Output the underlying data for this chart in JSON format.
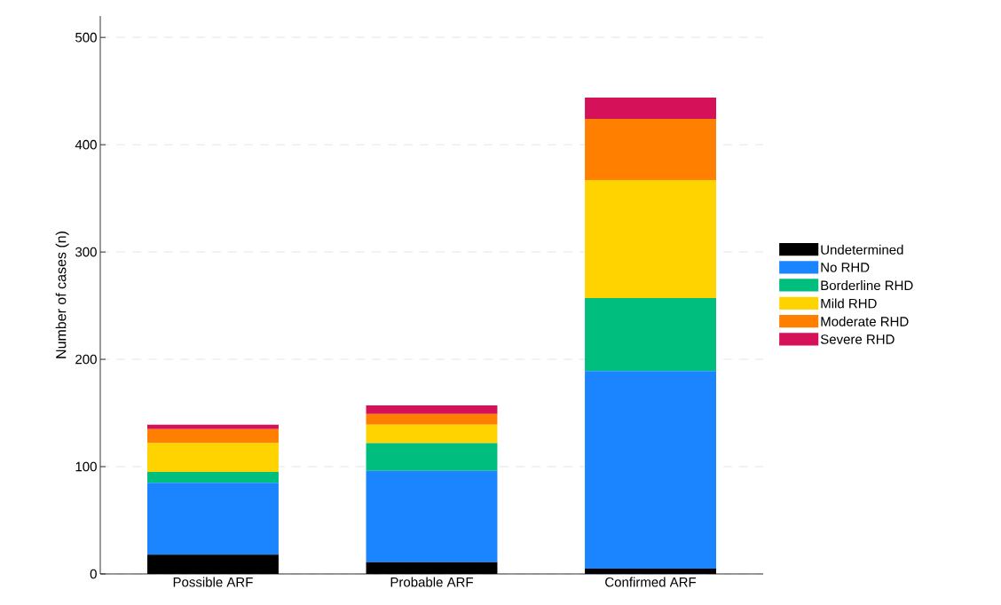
{
  "chart_data": {
    "type": "bar",
    "stacked": true,
    "ylabel": "Number of cases (n)",
    "categories": [
      "Possible ARF",
      "Probable ARF",
      "Confirmed ARF"
    ],
    "series": [
      {
        "name": "Undetermined",
        "color": "#000000",
        "values": [
          18,
          11,
          5
        ]
      },
      {
        "name": "No RHD",
        "color": "#1a85ff",
        "values": [
          67,
          85,
          184
        ]
      },
      {
        "name": "Borderline RHD",
        "color": "#00be7e",
        "values": [
          10,
          26,
          68
        ]
      },
      {
        "name": "Mild RHD",
        "color": "#ffd300",
        "values": [
          27,
          17,
          110
        ]
      },
      {
        "name": "Moderate RHD",
        "color": "#ff7f00",
        "values": [
          13,
          10,
          57
        ]
      },
      {
        "name": "Severe RHD",
        "color": "#d41159",
        "values": [
          4,
          8,
          20
        ]
      }
    ],
    "ylim": [
      0,
      520
    ],
    "yticks": [
      0,
      100,
      200,
      300,
      400,
      500
    ],
    "grid": "y",
    "legend": "right"
  }
}
